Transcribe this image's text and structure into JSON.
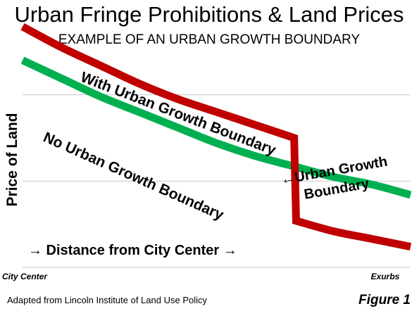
{
  "chart_data": {
    "type": "line",
    "title": "Urban Fringe Prohibitions & Land Prices",
    "subtitle": "EXAMPLE OF AN URBAN GROWTH BOUNDARY",
    "xlabel": "→ Distance from City Center →",
    "ylabel": "Price of Land",
    "x_tick_labels": [
      "City Center",
      "Exurbs"
    ],
    "xlim": [
      0,
      10
    ],
    "ylim": [
      0,
      10
    ],
    "grid": true,
    "legend": "none",
    "series": [
      {
        "name": "With Urban Growth Boundary",
        "color": "#c00000",
        "x": [
          0,
          1,
          2,
          3,
          4,
          5,
          6,
          7,
          7.05,
          8,
          9,
          10
        ],
        "y": [
          9.3,
          8.5,
          7.8,
          7.1,
          6.5,
          6.0,
          5.5,
          5.0,
          1.8,
          1.4,
          1.1,
          0.8
        ]
      },
      {
        "name": "No Urban Growth Boundary",
        "color": "#00b050",
        "x": [
          0,
          1,
          2,
          3,
          4,
          5,
          6,
          7,
          8,
          9,
          10
        ],
        "y": [
          8.0,
          7.3,
          6.6,
          6.0,
          5.4,
          4.8,
          4.3,
          3.9,
          3.5,
          3.2,
          2.8
        ]
      }
    ],
    "annotations": [
      {
        "text": "←Urban Growth",
        "line2": "Boundary"
      }
    ]
  },
  "footer": {
    "source": "Adapted from Lincoln Institute of Land Use Policy",
    "figure": "Figure 1"
  }
}
